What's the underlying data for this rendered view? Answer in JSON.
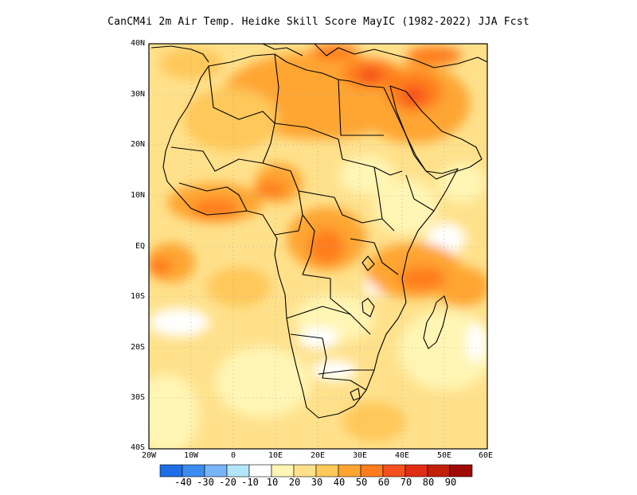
{
  "title": "CanCM4i 2m Air Temp. Heidke Skill Score MayIC (1982-2022) JJA Fcst",
  "map": {
    "lon_range": [
      -20,
      60
    ],
    "lat_range": [
      -40,
      40
    ],
    "x_ticks": [
      "20W",
      "10W",
      "0",
      "10E",
      "20E",
      "30E",
      "40E",
      "50E",
      "60E"
    ],
    "y_ticks": [
      "40N",
      "30N",
      "20N",
      "10N",
      "EQ",
      "10S",
      "20S",
      "30S",
      "40S"
    ],
    "grid": "dotted"
  },
  "colorbar": {
    "labels": [
      "-40",
      "-30",
      "-20",
      "-10",
      "10",
      "20",
      "30",
      "40",
      "50",
      "60",
      "70",
      "80",
      "90"
    ],
    "colors": [
      "#1e6ee8",
      "#3c8cf0",
      "#78b4f8",
      "#b4e6fa",
      "#ffffff",
      "#fff5b4",
      "#ffe18c",
      "#ffc85a",
      "#ffa532",
      "#ff7d1e",
      "#f5501e",
      "#e12d14",
      "#c31e0a",
      "#a00a05"
    ]
  }
}
